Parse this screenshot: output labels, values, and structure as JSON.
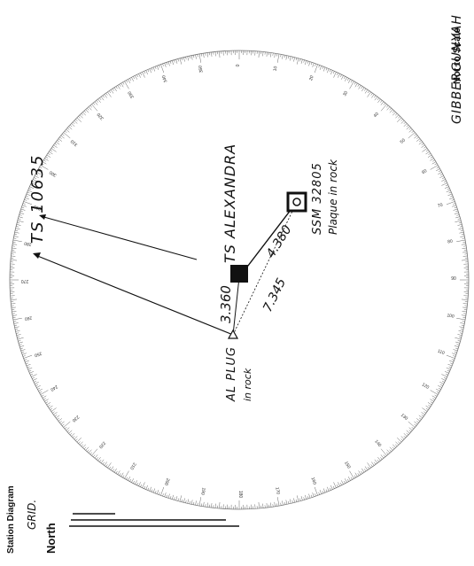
{
  "header": {
    "scale_note": "Not to Scale",
    "station_name": "GIBBERGUNYAH",
    "diagram_title": "Station Diagram"
  },
  "north_key": {
    "grid_label": "GRID.",
    "north_label": "North"
  },
  "stations": {
    "ts_10635": "TS 10635",
    "ts_alexandra": "TS ALEXANDRA",
    "ssm": "SSM 32805",
    "ssm_note": "Plaque in rock",
    "al_plug": "AL PLUG",
    "al_plug_note": "in rock"
  },
  "distances": {
    "al_to_ts": "3.360",
    "ts_to_ssm": "4.380",
    "al_to_ssm": "7.345"
  },
  "degree_labels": [
    "0",
    "10",
    "20",
    "30",
    "40",
    "50",
    "60",
    "70",
    "80",
    "90",
    "100",
    "110",
    "120",
    "130",
    "140",
    "150",
    "160",
    "170",
    "180",
    "190",
    "200",
    "210",
    "220",
    "230",
    "240",
    "250",
    "260",
    "270",
    "280",
    "290",
    "300",
    "310",
    "320",
    "330",
    "340",
    "350"
  ]
}
